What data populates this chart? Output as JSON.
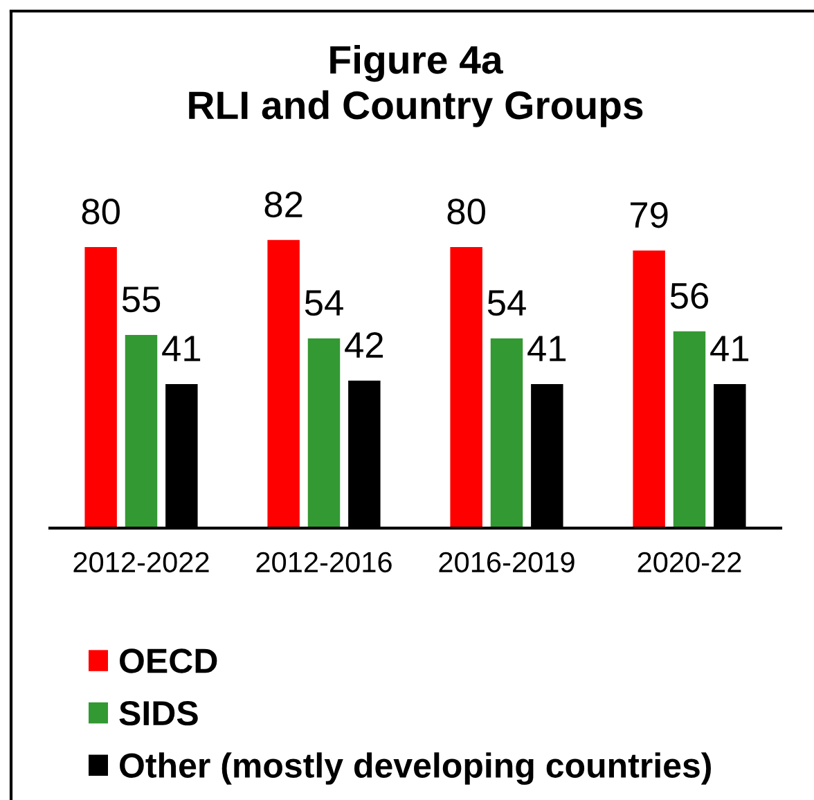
{
  "chart_data": {
    "type": "bar",
    "title": "Figure 4a\nRLI and Country Groups",
    "categories": [
      "2012-2022",
      "2012-2016",
      "2016-2019",
      "2020-22"
    ],
    "series": [
      {
        "name": "OECD",
        "color": "#ff0000",
        "values": [
          80,
          82,
          80,
          79
        ]
      },
      {
        "name": "SIDS",
        "color": "#339933",
        "values": [
          55,
          54,
          54,
          56
        ]
      },
      {
        "name": "Other (mostly developing countries)",
        "color": "#000000",
        "values": [
          41,
          42,
          41,
          41
        ]
      }
    ],
    "data_labels": true,
    "legend": "bottom left"
  }
}
